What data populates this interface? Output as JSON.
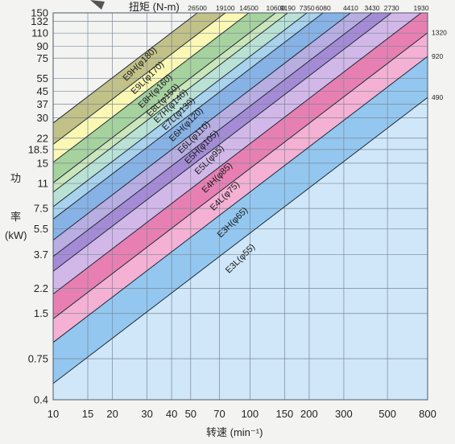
{
  "chart_data": {
    "type": "area",
    "x_scale": "log",
    "y_scale": "log",
    "xlim": [
      10,
      800
    ],
    "ylim": [
      0.4,
      150
    ],
    "x_ticks": [
      10,
      15,
      20,
      30,
      40,
      50,
      70,
      100,
      150,
      200,
      300,
      500,
      800
    ],
    "x_tick_labels": [
      "10",
      "15",
      "20",
      "30",
      "40",
      "50",
      "70",
      "100",
      "150",
      "200",
      "300",
      "500",
      "800"
    ],
    "y_ticks": [
      0.4,
      0.75,
      1.5,
      2.2,
      3.7,
      5.5,
      7.5,
      11,
      15,
      18.5,
      22,
      30,
      37,
      45,
      55,
      75,
      90,
      110,
      132,
      150
    ],
    "y_tick_labels": [
      "0.4",
      "0.75",
      "1.5",
      "2.2",
      "3.7",
      "5.5",
      "7.5",
      "11",
      "15",
      "18.5",
      "22",
      "30",
      "37",
      "45",
      "55",
      "75",
      "90",
      "110",
      "132",
      "150"
    ],
    "xlabel": "转速 (min⁻¹)",
    "ylabel_chars": [
      "功",
      "率"
    ],
    "ylabel_unit": "(kW)",
    "torque_axis_title": "扭矩 (N-m)",
    "torque_top_labels": [
      {
        "torque": 26500,
        "label": "26500"
      },
      {
        "torque": 19100,
        "label": "19100"
      },
      {
        "torque": 14500,
        "label": "14500"
      },
      {
        "torque": 10600,
        "label": "10600"
      },
      {
        "torque": 9190,
        "label": "9190"
      },
      {
        "torque": 7350,
        "label": "7350"
      },
      {
        "torque": 6080,
        "label": "6080"
      },
      {
        "torque": 4410,
        "label": "4410"
      },
      {
        "torque": 3430,
        "label": "3430"
      },
      {
        "torque": 2730,
        "label": "2730"
      },
      {
        "torque": 1930,
        "label": "1930"
      }
    ],
    "torque_right_labels": [
      {
        "torque": 1320,
        "label": "1320"
      },
      {
        "torque": 920,
        "label": "920"
      },
      {
        "torque": 490,
        "label": "490"
      }
    ],
    "bands": [
      {
        "name": "E9H(φ180)",
        "max_torque": 26500,
        "color": "#c2c187"
      },
      {
        "name": "E9L(φ170)",
        "max_torque": 19100,
        "color": "#fbf8b4"
      },
      {
        "name": "E8H(φ160)",
        "max_torque": 14500,
        "color": "#a6d29e"
      },
      {
        "name": "E8L(φ150)",
        "max_torque": 10600,
        "color": "#cbe6ba"
      },
      {
        "name": "E7H(φ140)",
        "max_torque": 9190,
        "color": "#b9e2d5"
      },
      {
        "name": "E7L(φ130)",
        "max_torque": 7350,
        "color": "#a9d2ec"
      },
      {
        "name": "E6H(φ120)",
        "max_torque": 6080,
        "color": "#87b2e6"
      },
      {
        "name": "E6L(φ110)",
        "max_torque": 4410,
        "color": "#b8aee2"
      },
      {
        "name": "E5H(φ105)",
        "max_torque": 3430,
        "color": "#a58bd6"
      },
      {
        "name": "E5L(φ95)",
        "max_torque": 2730,
        "color": "#d2b8e8"
      },
      {
        "name": "E4H(φ85)",
        "max_torque": 1930,
        "color": "#e87fb2"
      },
      {
        "name": "E4L(φ75)",
        "max_torque": 1320,
        "color": "#f4b1d4"
      },
      {
        "name": "E3H(φ65)",
        "max_torque": 920,
        "color": "#93c7ef"
      },
      {
        "name": "E3L(φ55)",
        "max_torque": 490,
        "color": "#cfe7f8"
      }
    ]
  }
}
